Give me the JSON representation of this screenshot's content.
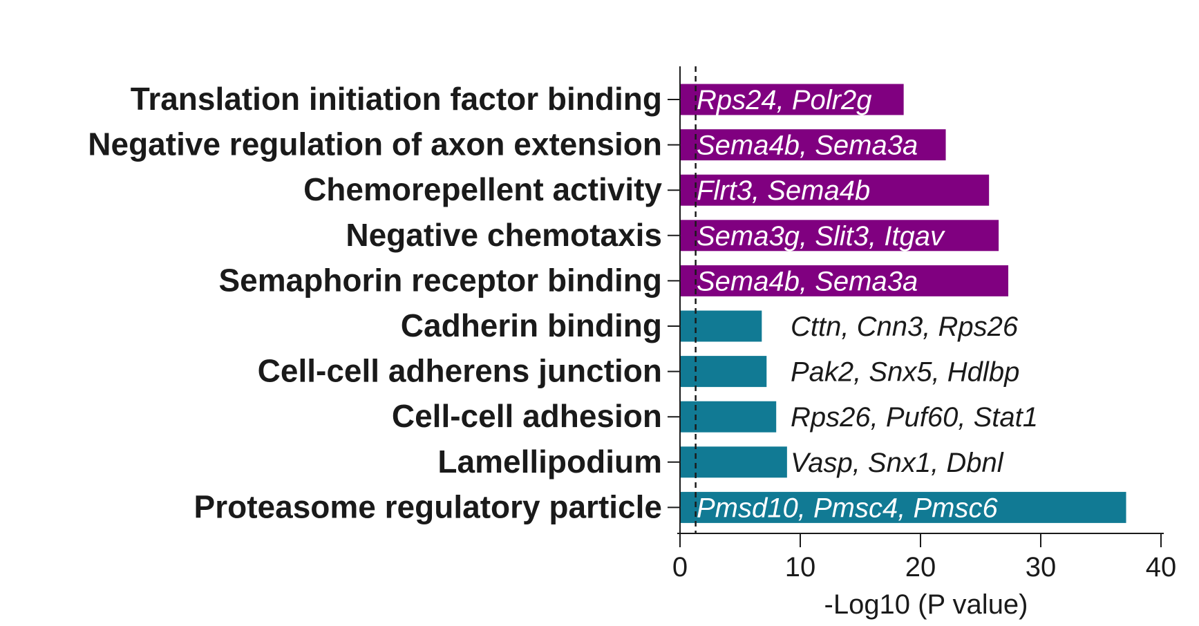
{
  "chart_data": {
    "type": "bar",
    "orientation": "horizontal",
    "xlabel": "-Log10 (P value)",
    "ylabel": "",
    "xlim": [
      0,
      40
    ],
    "xticks": [
      0,
      10,
      20,
      30,
      40
    ],
    "threshold_line": 1.3,
    "grid": false,
    "colors": {
      "purple": "#800080",
      "teal": "#117A94"
    },
    "categories": [
      "Translation initiation factor binding",
      "Negative regulation of axon extension",
      "Chemorepellent activity",
      "Negative chemotaxis",
      "Semaphorin receptor binding",
      "Cadherin binding",
      "Cell-cell adherens junction",
      "Cell-cell adhesion",
      "Lamellipodium",
      "Proteasome regulatory particle"
    ],
    "values": [
      18.6,
      22.1,
      25.7,
      26.5,
      27.3,
      6.8,
      7.2,
      8.0,
      8.9,
      37.1
    ],
    "genes": [
      "Rps24, Polr2g",
      "Sema4b, Sema3a",
      "Flrt3, Sema4b",
      "Sema3g, Slit3, Itgav",
      "Sema4b, Sema3a",
      "Cttn, Cnn3, Rps26",
      "Pak2, Snx5, Hdlbp",
      "Rps26, Puf60, Stat1",
      "Vasp, Snx1, Dbnl",
      "Pmsd10, Pmsc4, Pmsc6"
    ],
    "bar_colors": [
      "purple",
      "purple",
      "purple",
      "purple",
      "purple",
      "teal",
      "teal",
      "teal",
      "teal",
      "teal"
    ]
  }
}
